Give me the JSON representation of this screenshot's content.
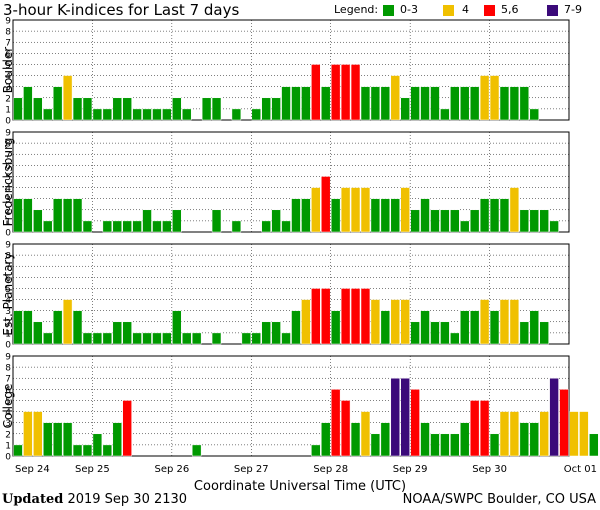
{
  "title": "3-hour K-indices for Last 7 days",
  "legend": {
    "label": "Legend:",
    "items": [
      {
        "label": "0-3",
        "color": "#009900"
      },
      {
        "label": "4",
        "color": "#f0c000"
      },
      {
        "label": "5,6",
        "color": "#ff0000"
      },
      {
        "label": "7-9",
        "color": "#3b0a7a"
      }
    ]
  },
  "footer": {
    "updated_label": "Updated",
    "updated_value": "2019 Sep 30 2130",
    "source": "NOAA/SWPC Boulder, CO USA"
  },
  "chart_data": {
    "type": "bar",
    "xlabel": "Coordinate Universal Time (UTC)",
    "x_ticks": [
      "Sep 24",
      "Sep 25",
      "Sep 26",
      "Sep 27",
      "Sep 28",
      "Sep 29",
      "Sep 30",
      "Oct 01"
    ],
    "ylim": [
      0,
      9
    ],
    "y_ticks": [
      0,
      1,
      2,
      3,
      4,
      5,
      6,
      7,
      8,
      9
    ],
    "bins_per_day": 8,
    "grid": true,
    "color_scale": [
      {
        "range": "0-3",
        "color": "#009900"
      },
      {
        "range": "4",
        "color": "#f0c000"
      },
      {
        "range": "5,6",
        "color": "#ff0000"
      },
      {
        "range": "7-9",
        "color": "#3b0a7a"
      }
    ],
    "panels": [
      {
        "name": "Boulder",
        "values": [
          2,
          3,
          2,
          1,
          3,
          4,
          2,
          2,
          1,
          1,
          2,
          2,
          1,
          1,
          1,
          1,
          2,
          1,
          0,
          2,
          2,
          0,
          1,
          0,
          1,
          2,
          2,
          3,
          3,
          3,
          5,
          3,
          5,
          5,
          5,
          3,
          3,
          3,
          4,
          2,
          3,
          3,
          3,
          1,
          3,
          3,
          3,
          4,
          4,
          3,
          3,
          3,
          1,
          0
        ]
      },
      {
        "name": "Fredericksburg",
        "values": [
          3,
          3,
          2,
          1,
          3,
          3,
          3,
          1,
          0,
          1,
          1,
          1,
          1,
          2,
          1,
          1,
          2,
          0,
          0,
          0,
          2,
          0,
          1,
          0,
          0,
          1,
          2,
          1,
          3,
          3,
          4,
          5,
          3,
          4,
          4,
          4,
          3,
          3,
          3,
          4,
          2,
          3,
          2,
          2,
          2,
          1,
          2,
          3,
          3,
          3,
          4,
          2,
          2,
          2,
          1,
          0
        ]
      },
      {
        "name": "Est. Planetary",
        "values": [
          3,
          3,
          2,
          1,
          3,
          4,
          3,
          1,
          1,
          1,
          2,
          2,
          1,
          1,
          1,
          1,
          3,
          1,
          1,
          0,
          1,
          0,
          0,
          1,
          1,
          2,
          2,
          1,
          3,
          4,
          5,
          5,
          3,
          5,
          5,
          5,
          4,
          3,
          4,
          4,
          2,
          3,
          2,
          2,
          1,
          3,
          3,
          4,
          3,
          4,
          4,
          2,
          3,
          2
        ]
      },
      {
        "name": "College",
        "values": [
          1,
          4,
          4,
          3,
          3,
          3,
          1,
          1,
          2,
          1,
          3,
          5,
          0,
          0,
          0,
          0,
          0,
          0,
          1,
          0,
          0,
          0,
          0,
          0,
          0,
          0,
          0,
          0,
          0,
          0,
          1,
          3,
          6,
          5,
          3,
          4,
          2,
          3,
          7,
          7,
          6,
          3,
          2,
          2,
          2,
          3,
          5,
          5,
          2,
          4,
          4,
          3,
          3,
          4,
          7,
          6,
          4,
          4,
          2,
          0
        ]
      }
    ]
  }
}
